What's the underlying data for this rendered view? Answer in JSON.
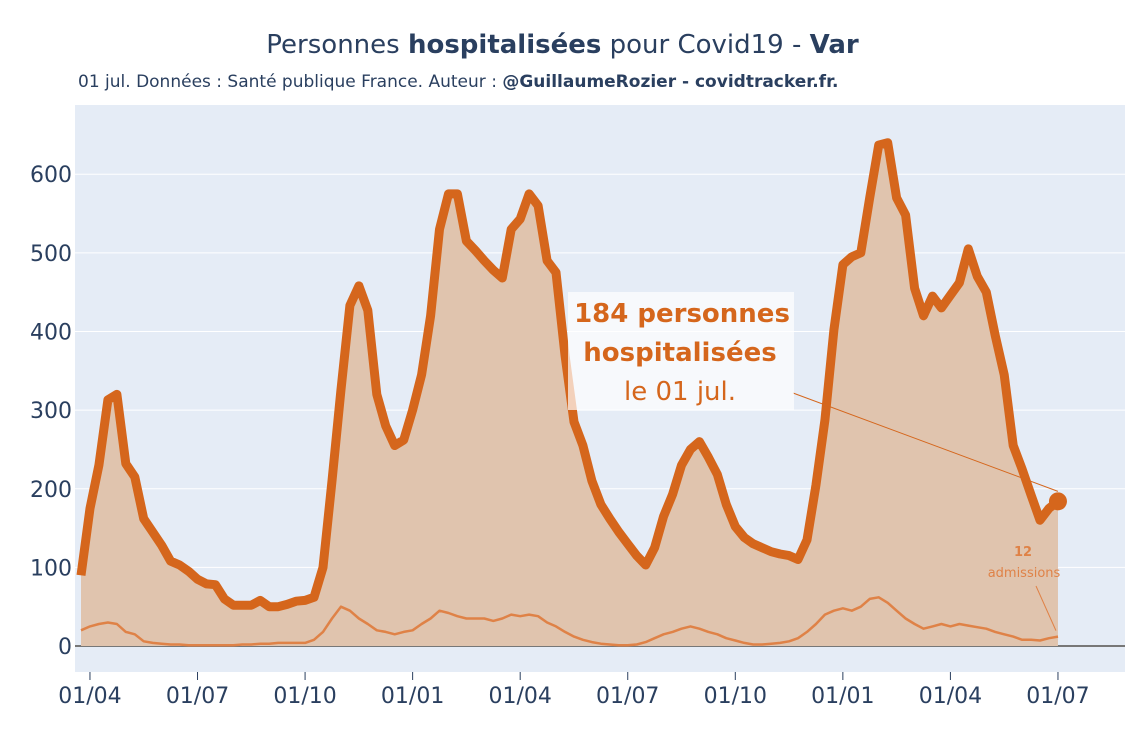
{
  "chart_data": {
    "type": "area-line",
    "title": [
      "Personnes",
      "hospitalisées",
      "pour Covid19 -",
      "Var"
    ],
    "subtitle": [
      "01 jul. Données : Santé publique France. Auteur :",
      "@GuillaumeRozier - covidtracker.fr."
    ],
    "categories": [
      null,
      "01/04",
      null,
      null,
      null,
      null,
      null,
      null,
      null,
      null,
      null,
      null,
      null,
      "01/07",
      null,
      null,
      null,
      null,
      null,
      null,
      null,
      null,
      null,
      null,
      null,
      "01/10",
      null,
      null,
      null,
      null,
      null,
      null,
      null,
      null,
      null,
      null,
      null,
      "01/01",
      null,
      null,
      null,
      null,
      null,
      null,
      null,
      null,
      null,
      null,
      null,
      "01/04",
      null,
      null,
      null,
      null,
      null,
      null,
      null,
      null,
      null,
      null,
      null,
      "01/07",
      null,
      null,
      null,
      null,
      null,
      null,
      null,
      null,
      null,
      null,
      null,
      "01/10",
      null,
      null,
      null,
      null,
      null,
      null,
      null,
      null,
      null,
      null,
      null,
      "01/01",
      null,
      null,
      null,
      null,
      null,
      null,
      null,
      null,
      null,
      null,
      null,
      "01/04",
      null,
      null,
      null,
      null,
      null,
      null,
      null,
      null,
      null,
      null,
      null,
      "01/07"
    ],
    "series": [
      {
        "color": "#d5661c",
        "fill": "#e0c4ae",
        "values": [
          90,
          175,
          230,
          313,
          320,
          232,
          215,
          162,
          145,
          128,
          108,
          103,
          95,
          85,
          79,
          78,
          60,
          52,
          52,
          52,
          58,
          50,
          50,
          53,
          57,
          58,
          62,
          100,
          210,
          325,
          433,
          458,
          427,
          320,
          280,
          255,
          262,
          300,
          345,
          420,
          530,
          575,
          575,
          515,
          503,
          490,
          478,
          468,
          530,
          543,
          575,
          560,
          490,
          475,
          370,
          285,
          255,
          210,
          180,
          162,
          145,
          130,
          115,
          103,
          125,
          165,
          193,
          230,
          250,
          260,
          240,
          218,
          180,
          152,
          138,
          130,
          125,
          120,
          117,
          115,
          110,
          135,
          205,
          287,
          402,
          485,
          495,
          500,
          570,
          637,
          640,
          570,
          548,
          455,
          420,
          445,
          430,
          446,
          462,
          505,
          470,
          450,
          395,
          345,
          255,
          225,
          192,
          160,
          175,
          184
        ]
      },
      {
        "color": "#df8247",
        "values": [
          20,
          25,
          28,
          30,
          28,
          18,
          15,
          6,
          4,
          3,
          2,
          2,
          1,
          1,
          1,
          1,
          1,
          1,
          2,
          2,
          3,
          3,
          4,
          4,
          4,
          4,
          8,
          18,
          35,
          50,
          45,
          35,
          28,
          20,
          18,
          15,
          18,
          20,
          28,
          35,
          45,
          42,
          38,
          35,
          35,
          35,
          32,
          35,
          40,
          38,
          40,
          38,
          30,
          25,
          18,
          12,
          8,
          5,
          3,
          2,
          1,
          1,
          2,
          5,
          10,
          15,
          18,
          22,
          25,
          22,
          18,
          15,
          10,
          7,
          4,
          2,
          2,
          3,
          4,
          6,
          10,
          18,
          28,
          40,
          45,
          48,
          45,
          50,
          60,
          62,
          55,
          45,
          35,
          28,
          22,
          25,
          28,
          25,
          28,
          26,
          24,
          22,
          18,
          15,
          12,
          8,
          8,
          7,
          10,
          12
        ]
      }
    ],
    "annotations": [
      [
        "184 personnes",
        "hospitalisées",
        "le 01 jul."
      ],
      [
        "12",
        "admissions"
      ]
    ],
    "ylim": [
      -33,
      688
    ],
    "yticks": [
      0,
      100,
      200,
      300,
      400,
      500,
      600
    ],
    "grid": true
  }
}
